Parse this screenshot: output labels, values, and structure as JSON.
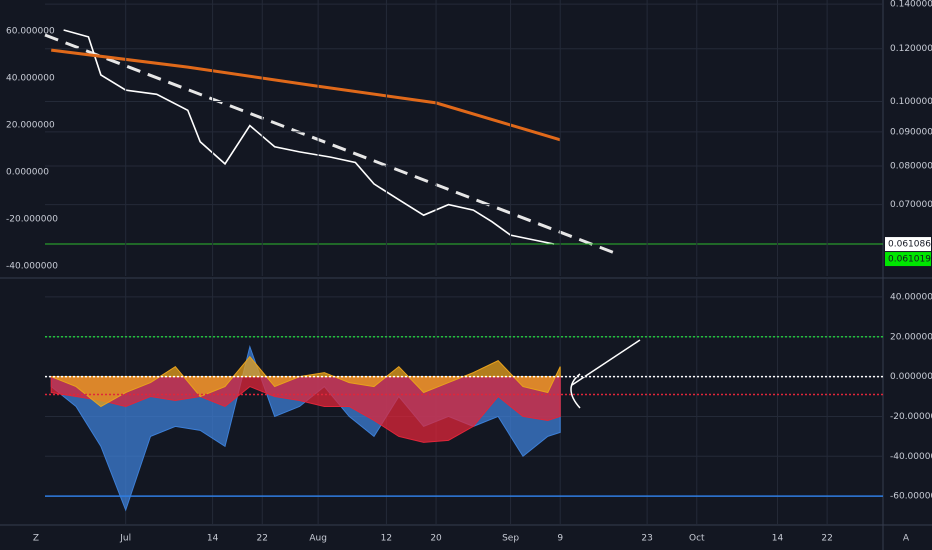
{
  "toolbar": {
    "left": "Z",
    "right": "A"
  },
  "chart_data": [
    {
      "type": "line",
      "log_scale": true,
      "xlim": [
        -13,
        122
      ],
      "ylim": [
        0.0547,
        0.142
      ],
      "yticks": [
        {
          "value": 0.14,
          "label": "0.140000"
        },
        {
          "value": 0.12,
          "label": "0.120000"
        },
        {
          "value": 0.1,
          "label": "0.100000"
        },
        {
          "value": 0.09,
          "label": "0.090000"
        },
        {
          "value": 0.08,
          "label": "0.080000"
        },
        {
          "value": 0.07,
          "label": "0.070000"
        }
      ],
      "y2lim": [
        -44.3,
        73.2
      ],
      "y2ticks": [
        {
          "value": 60,
          "label": "60.000000"
        },
        {
          "value": 40,
          "label": "40.000000"
        },
        {
          "value": 20,
          "label": "20.000000"
        },
        {
          "value": 0,
          "label": "0.000000"
        },
        {
          "value": -20,
          "label": "-20.000000"
        },
        {
          "value": -40,
          "label": "-40.000000"
        }
      ],
      "series": [
        {
          "color": "#ffffff",
          "x": [
            -10,
            -6,
            -4,
            0,
            5,
            10,
            12,
            16,
            20,
            24,
            28,
            33,
            37,
            40,
            44,
            48,
            52,
            56,
            59,
            62,
            66,
            69
          ],
          "values": [
            0.128,
            0.125,
            0.1096,
            0.104,
            0.1025,
            0.097,
            0.087,
            0.0806,
            0.092,
            0.0855,
            0.084,
            0.0825,
            0.081,
            0.0752,
            0.0712,
            0.0675,
            0.07,
            0.0687,
            0.066,
            0.063,
            0.0619,
            0.061086
          ]
        },
        {
          "color": "#e0691a",
          "x": [
            -12,
            10,
            30,
            50,
            70
          ],
          "values": [
            0.1194,
            0.1126,
            0.1057,
            0.0995,
            0.0876
          ]
        }
      ],
      "price_labels": [
        {
          "value": 0.061086,
          "label": "0.061086",
          "color": "#ffffff"
        },
        {
          "value": 0.061019,
          "label": "0.061019",
          "color": "#00e600"
        }
      ],
      "grid": true
    },
    {
      "type": "area",
      "xlim": [
        -13,
        122
      ],
      "ylim": [
        -74.5,
        49
      ],
      "xticks": [
        {
          "value": 0,
          "label": "Jul"
        },
        14,
        22,
        {
          "value": 31,
          "label": "Aug"
        },
        {
          "value": 42,
          "label": "12"
        },
        {
          "value": 50,
          "label": "20"
        },
        {
          "value": 62,
          "label": "Sep"
        },
        {
          "value": 70,
          "label": "9"
        },
        {
          "value": 84,
          "label": "23"
        },
        {
          "value": 92,
          "label": "Oct"
        },
        {
          "value": 105,
          "label": "14"
        },
        {
          "value": 113,
          "label": "22"
        }
      ],
      "yticks": [
        {
          "value": 40,
          "label": "40.000000"
        },
        {
          "value": 20,
          "label": "20.000000"
        },
        {
          "value": 0,
          "label": "0.000000"
        },
        {
          "value": -20,
          "label": "-20.000000"
        },
        {
          "value": -40,
          "label": "-40.000000"
        },
        {
          "value": -60,
          "label": "-60.000000"
        }
      ],
      "x": [
        -12,
        -8,
        -4,
        0,
        4,
        8,
        12,
        16,
        20,
        24,
        28,
        32,
        36,
        40,
        44,
        48,
        52,
        56,
        60,
        64,
        68,
        70
      ],
      "series": [
        {
          "color": "#3d7fd6",
          "values": [
            -5,
            -15,
            -35,
            -67,
            -30,
            -25,
            -27,
            -35,
            15,
            -20,
            -15,
            -5,
            -20,
            -30,
            -10,
            -25,
            -20,
            -25,
            -20,
            -40,
            -30,
            -28
          ]
        },
        {
          "color": "#e0263a",
          "values": [
            -8,
            -10,
            -12,
            -15,
            -10,
            -12,
            -10,
            -15,
            -5,
            -10,
            -12,
            -15,
            -15,
            -22,
            -30,
            -33,
            -32,
            -25,
            -10,
            -20,
            -22,
            -20
          ]
        },
        {
          "color": "#e8a21c",
          "values": [
            0,
            -5,
            -15,
            -8,
            -3,
            5,
            -10,
            -5,
            10,
            -5,
            0,
            2,
            -3,
            -5,
            5,
            -8,
            -3,
            2,
            8,
            -5,
            -8,
            5
          ]
        }
      ],
      "hlines": [
        {
          "value": 20,
          "color": "#22c33c",
          "dash": true
        },
        {
          "value": 0,
          "color": "#ffffff",
          "dash": true
        },
        {
          "value": -9,
          "color": "#e0263a",
          "dash": true
        },
        {
          "value": -60,
          "color": "#2f7de1",
          "dash": false
        }
      ],
      "grid": true
    }
  ]
}
